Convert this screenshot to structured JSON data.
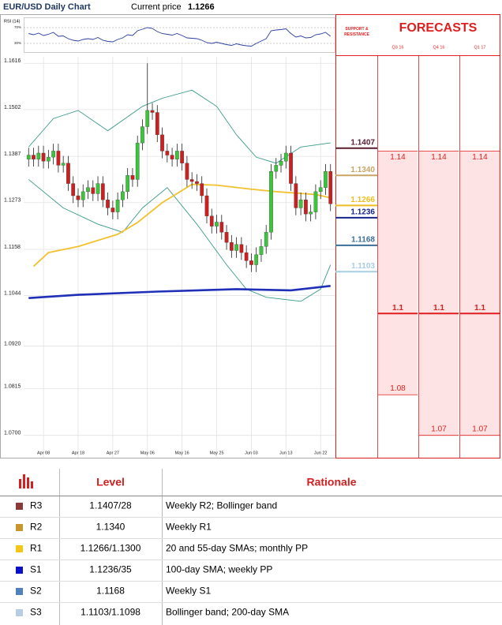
{
  "header": {
    "title": "EUR/USD Daily Chart",
    "price_label": "Current price",
    "price": 1.1266
  },
  "chart_data": [
    {
      "type": "candlestick",
      "xlim": [
        -1,
        62
      ],
      "xticks": [
        {
          "value": 3,
          "label": "Apr 08"
        },
        {
          "value": 10,
          "label": "Apr 18"
        },
        {
          "value": 17,
          "label": "Apr 27"
        },
        {
          "value": 24,
          "label": "May 06"
        },
        {
          "value": 31,
          "label": "May 16"
        },
        {
          "value": 38,
          "label": "May 25"
        },
        {
          "value": 45,
          "label": "Jun 03"
        },
        {
          "value": 52,
          "label": "Jun 13"
        },
        {
          "value": 59,
          "label": "Jun 22"
        }
      ],
      "ylim": [
        1.0645,
        1.1632
      ],
      "yticks": [
        1.1616,
        1.1502,
        1.1387,
        1.1273,
        1.1158,
        1.1044,
        {
          "value": 1.092,
          "label": "1.0920"
        },
        1.0815,
        {
          "value": 1.07,
          "label": "1.0700"
        }
      ],
      "grid": true,
      "up_color": "#3cc43c",
      "down_color": "#cc1f1f",
      "candles": {
        "open": [
          1.138,
          1.139,
          1.138,
          1.1395,
          1.1375,
          1.1385,
          1.14,
          1.1365,
          1.137,
          1.132,
          1.129,
          1.128,
          1.13,
          1.131,
          1.1295,
          1.132,
          1.128,
          1.126,
          1.125,
          1.128,
          1.13,
          1.134,
          1.133,
          1.142,
          1.146,
          1.15,
          1.1495,
          1.144,
          1.14,
          1.139,
          1.138,
          1.14,
          1.137,
          1.133,
          1.1325,
          1.132,
          1.129,
          1.124,
          1.1215,
          1.1225,
          1.12,
          1.1175,
          1.1155,
          1.117,
          1.115,
          1.113,
          1.112,
          1.1145,
          1.1165,
          1.12,
          1.135,
          1.1365,
          1.1375,
          1.1395,
          1.132,
          1.126,
          1.128,
          1.1245,
          1.125,
          1.13,
          1.131,
          1.135
        ],
        "high": [
          1.1408,
          1.1408,
          1.1413,
          1.1413,
          1.1403,
          1.1418,
          1.1418,
          1.1388,
          1.1388,
          1.1338,
          1.1308,
          1.1318,
          1.1328,
          1.1328,
          1.1338,
          1.1338,
          1.1298,
          1.1278,
          1.1298,
          1.1318,
          1.1358,
          1.1358,
          1.1438,
          1.1478,
          1.1616,
          1.1518,
          1.1513,
          1.1458,
          1.1418,
          1.1408,
          1.1418,
          1.1418,
          1.1388,
          1.1348,
          1.1343,
          1.1338,
          1.1308,
          1.1258,
          1.1243,
          1.1243,
          1.1218,
          1.1193,
          1.1188,
          1.1188,
          1.1168,
          1.1148,
          1.1163,
          1.1183,
          1.1218,
          1.1368,
          1.1383,
          1.1393,
          1.1413,
          1.1413,
          1.1338,
          1.1298,
          1.1298,
          1.1268,
          1.1318,
          1.1328,
          1.1368,
          1.1368
        ],
        "low": [
          1.1362,
          1.1362,
          1.1362,
          1.1357,
          1.1357,
          1.1367,
          1.1347,
          1.1347,
          1.1302,
          1.1272,
          1.1262,
          1.1262,
          1.1282,
          1.1277,
          1.1277,
          1.1262,
          1.1242,
          1.1232,
          1.1232,
          1.1262,
          1.1282,
          1.1312,
          1.1312,
          1.1402,
          1.1442,
          1.1477,
          1.1422,
          1.1382,
          1.1372,
          1.1362,
          1.1362,
          1.1352,
          1.1312,
          1.1307,
          1.1302,
          1.1272,
          1.1222,
          1.1197,
          1.1197,
          1.1182,
          1.1157,
          1.1137,
          1.1137,
          1.1132,
          1.1112,
          1.1102,
          1.1102,
          1.1127,
          1.1147,
          1.1182,
          1.1332,
          1.1347,
          1.1357,
          1.1302,
          1.1242,
          1.1242,
          1.1227,
          1.1227,
          1.1232,
          1.1282,
          1.1292,
          1.1252
        ],
        "close": [
          1.139,
          1.138,
          1.1395,
          1.1375,
          1.1385,
          1.14,
          1.1365,
          1.137,
          1.132,
          1.129,
          1.128,
          1.13,
          1.131,
          1.1295,
          1.132,
          1.128,
          1.126,
          1.125,
          1.128,
          1.13,
          1.134,
          1.133,
          1.142,
          1.146,
          1.15,
          1.1495,
          1.144,
          1.14,
          1.139,
          1.138,
          1.14,
          1.137,
          1.133,
          1.1325,
          1.132,
          1.129,
          1.124,
          1.1215,
          1.1225,
          1.12,
          1.1175,
          1.1155,
          1.117,
          1.115,
          1.113,
          1.112,
          1.1145,
          1.1165,
          1.12,
          1.135,
          1.1365,
          1.1375,
          1.1395,
          1.132,
          1.126,
          1.128,
          1.1245,
          1.125,
          1.13,
          1.131,
          1.135,
          1.127
        ]
      },
      "lines": [
        {
          "color": "#3a9a8a",
          "x": [
            0,
            5,
            10,
            16,
            23,
            27,
            33,
            38,
            42,
            46,
            50,
            55,
            61
          ],
          "values": [
            1.141,
            1.148,
            1.15,
            1.145,
            1.151,
            1.153,
            1.155,
            1.151,
            1.144,
            1.1385,
            1.137,
            1.141,
            1.142
          ]
        },
        {
          "color": "#3a9a8a",
          "x": [
            0,
            7,
            14,
            19,
            23,
            28,
            34,
            40,
            44,
            48,
            55,
            59,
            61
          ],
          "values": [
            1.133,
            1.126,
            1.122,
            1.12,
            1.126,
            1.131,
            1.122,
            1.112,
            1.106,
            1.104,
            1.103,
            1.106,
            1.112
          ]
        },
        {
          "color": "#f2c12e",
          "x": [
            1,
            4,
            10,
            18,
            22,
            27,
            33,
            38,
            45,
            50,
            58,
            61
          ],
          "values": [
            1.1116,
            1.115,
            1.1165,
            1.1195,
            1.1224,
            1.1273,
            1.1318,
            1.1316,
            1.1306,
            1.13,
            1.1293,
            1.1285
          ]
        },
        {
          "color": "#1f2fb8",
          "x": [
            0,
            10,
            26,
            42,
            53,
            61
          ],
          "values": [
            1.1038,
            1.1046,
            1.1054,
            1.106,
            1.1057,
            1.1068
          ]
        }
      ]
    },
    {
      "type": "line",
      "title": "RSI (14)",
      "color": "#2b3f9e",
      "ylim": [
        8,
        96
      ],
      "yticks": [
        {
          "value": 70,
          "label": "70%"
        },
        {
          "value": 30,
          "label": "30%"
        }
      ],
      "values": [
        55,
        52,
        56,
        50,
        53,
        58,
        48,
        49,
        42,
        38,
        36,
        40,
        42,
        40,
        45,
        38,
        35,
        34,
        40,
        44,
        52,
        50,
        62,
        66,
        70,
        68,
        60,
        55,
        53,
        51,
        55,
        50,
        44,
        43,
        42,
        38,
        32,
        30,
        33,
        30,
        27,
        25,
        29,
        26,
        24,
        23,
        30,
        36,
        42,
        62,
        64,
        65,
        67,
        55,
        46,
        49,
        44,
        45,
        52,
        54,
        58,
        48
      ]
    }
  ],
  "support_resistance": {
    "title": "SUPPORT & RESISTANCE",
    "levels": [
      1.1407,
      {
        "value": 1.134,
        "label": "1.1340"
      },
      1.1266,
      1.1236,
      1.1168,
      1.1103
    ],
    "colors": [
      "#5c1a2e",
      "#c9a464",
      "#efbe1e",
      "#14238c",
      "#3b6e96",
      "#a8cfe0"
    ]
  },
  "forecasts": {
    "title": "FORECASTS",
    "periods": [
      "Q3 16",
      "Q4 16",
      "Q1 17"
    ],
    "high": [
      1.14,
      1.14,
      1.14
    ],
    "mid": [
      1.1,
      1.1,
      1.1
    ],
    "low": [
      1.08,
      1.07,
      1.07
    ],
    "color": "#e01e1e"
  },
  "table": {
    "header": [
      "Level",
      "Rationale"
    ],
    "colors": [
      "#8b3a3a",
      "#c8962c",
      "#f5c518",
      "#0a10c8",
      "#4f81bd",
      "#b8cce4"
    ],
    "rows": [
      [
        "R3",
        "1.1407/28",
        "Weekly R2; Bollinger band"
      ],
      [
        "R2",
        "1.1340",
        "Weekly R1"
      ],
      [
        "R1",
        "1.1266/1.1300",
        "20 and 55-day SMAs; monthly PP"
      ],
      [
        "S1",
        "1.1236/35",
        "100-day SMA; weekly PP"
      ],
      [
        "S2",
        "1.1168",
        "Weekly S1"
      ],
      [
        "S3",
        "1.1103/1.1098",
        "Bollinger band; 200-day SMA"
      ]
    ]
  }
}
